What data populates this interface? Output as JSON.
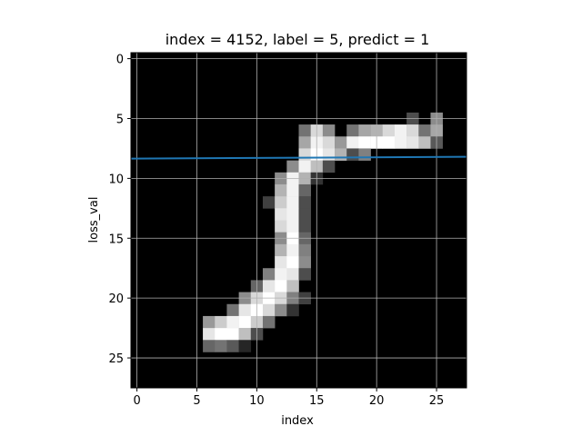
{
  "chart_data": {
    "type": "heatmap",
    "title": "index = 4152, label = 5, predict = 1",
    "xlabel": "index",
    "ylabel": "loss_val",
    "xlim": [
      -0.5,
      27.5
    ],
    "ylim": [
      27.5,
      -0.5
    ],
    "x_ticks": [
      0,
      5,
      10,
      15,
      20,
      25
    ],
    "y_ticks": [
      0,
      5,
      10,
      15,
      20,
      25
    ],
    "grid": true,
    "colormap": "gray",
    "image_rows": 28,
    "image_cols": 28,
    "pixels": [
      [
        6,
        14,
        0.45
      ],
      [
        7,
        14,
        0.65
      ],
      [
        7,
        15,
        0.95
      ],
      [
        6,
        15,
        0.85
      ],
      [
        6,
        16,
        0.55
      ],
      [
        7,
        16,
        0.85
      ],
      [
        7,
        17,
        0.6
      ],
      [
        6,
        18,
        0.45
      ],
      [
        6,
        19,
        0.65
      ],
      [
        6,
        20,
        0.7
      ],
      [
        6,
        21,
        0.85
      ],
      [
        6,
        22,
        0.95
      ],
      [
        5,
        23,
        0.3
      ],
      [
        6,
        23,
        0.85
      ],
      [
        6,
        24,
        0.45
      ],
      [
        5,
        25,
        0.55
      ],
      [
        6,
        25,
        0.65
      ],
      [
        7,
        18,
        0.95
      ],
      [
        7,
        19,
        1.0
      ],
      [
        7,
        20,
        1.0
      ],
      [
        7,
        21,
        1.0
      ],
      [
        7,
        22,
        0.95
      ],
      [
        7,
        23,
        0.9
      ],
      [
        7,
        24,
        0.75
      ],
      [
        7,
        25,
        0.35
      ],
      [
        8,
        14,
        0.85
      ],
      [
        8,
        15,
        1.0
      ],
      [
        8,
        16,
        0.9
      ],
      [
        8,
        17,
        0.7
      ],
      [
        8,
        18,
        0.3
      ],
      [
        8,
        19,
        0.5
      ],
      [
        9,
        13,
        0.55
      ],
      [
        9,
        14,
        0.95
      ],
      [
        9,
        15,
        0.75
      ],
      [
        9,
        16,
        0.3
      ],
      [
        10,
        12,
        0.55
      ],
      [
        10,
        13,
        0.95
      ],
      [
        10,
        14,
        0.7
      ],
      [
        10,
        15,
        0.2
      ],
      [
        11,
        12,
        0.7
      ],
      [
        11,
        13,
        0.95
      ],
      [
        11,
        14,
        0.4
      ],
      [
        12,
        11,
        0.25
      ],
      [
        12,
        12,
        0.8
      ],
      [
        12,
        13,
        0.95
      ],
      [
        12,
        14,
        0.3
      ],
      [
        13,
        12,
        0.9
      ],
      [
        13,
        13,
        0.95
      ],
      [
        13,
        14,
        0.3
      ],
      [
        14,
        12,
        0.85
      ],
      [
        14,
        13,
        0.95
      ],
      [
        14,
        14,
        0.3
      ],
      [
        15,
        12,
        0.55
      ],
      [
        15,
        13,
        1.0
      ],
      [
        15,
        14,
        0.4
      ],
      [
        16,
        12,
        0.7
      ],
      [
        16,
        13,
        0.95
      ],
      [
        16,
        14,
        0.5
      ],
      [
        17,
        12,
        0.9
      ],
      [
        17,
        13,
        1.0
      ],
      [
        17,
        14,
        0.55
      ],
      [
        18,
        11,
        0.5
      ],
      [
        18,
        12,
        0.95
      ],
      [
        18,
        13,
        0.9
      ],
      [
        18,
        14,
        0.3
      ],
      [
        19,
        10,
        0.4
      ],
      [
        19,
        11,
        0.9
      ],
      [
        19,
        12,
        1.0
      ],
      [
        19,
        13,
        0.75
      ],
      [
        20,
        9,
        0.55
      ],
      [
        20,
        10,
        0.85
      ],
      [
        20,
        11,
        1.0
      ],
      [
        20,
        12,
        0.85
      ],
      [
        20,
        13,
        0.5
      ],
      [
        20,
        14,
        0.25
      ],
      [
        21,
        8,
        0.45
      ],
      [
        21,
        9,
        0.9
      ],
      [
        21,
        10,
        1.0
      ],
      [
        21,
        11,
        0.85
      ],
      [
        21,
        12,
        0.55
      ],
      [
        21,
        13,
        0.2
      ],
      [
        22,
        6,
        0.6
      ],
      [
        22,
        7,
        0.8
      ],
      [
        22,
        8,
        0.95
      ],
      [
        22,
        9,
        1.0
      ],
      [
        22,
        10,
        0.8
      ],
      [
        22,
        11,
        0.45
      ],
      [
        23,
        6,
        0.9
      ],
      [
        23,
        7,
        1.0
      ],
      [
        23,
        8,
        1.0
      ],
      [
        23,
        9,
        0.75
      ],
      [
        23,
        10,
        0.3
      ],
      [
        24,
        6,
        0.4
      ],
      [
        24,
        7,
        0.45
      ],
      [
        24,
        8,
        0.35
      ],
      [
        24,
        9,
        0.15
      ]
    ],
    "series": [
      {
        "type": "line",
        "color": "#1f77b4",
        "x": [
          -0.5,
          27.5
        ],
        "y": [
          8.35,
          8.2
        ]
      }
    ]
  }
}
